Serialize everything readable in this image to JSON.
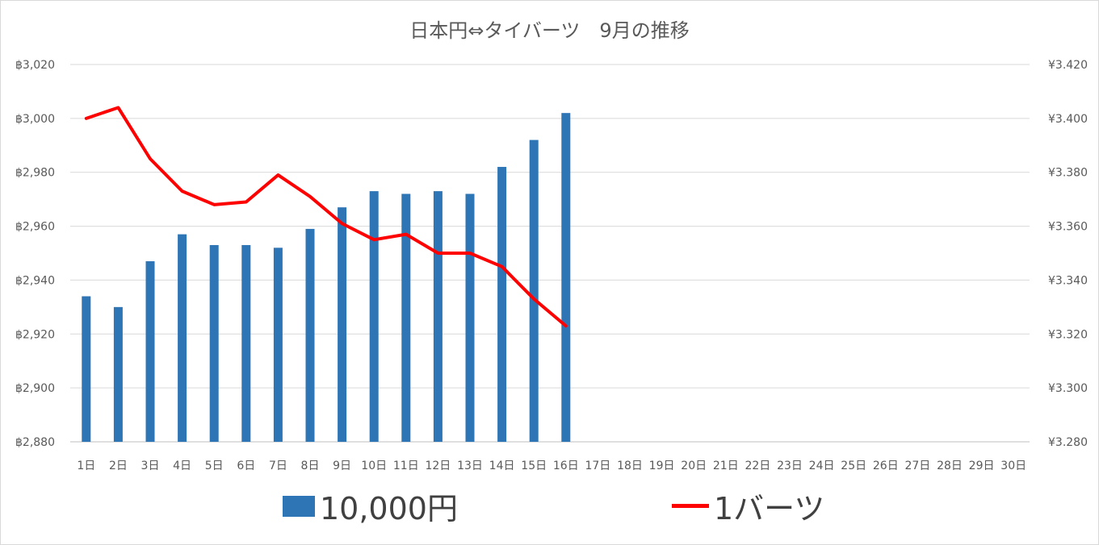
{
  "chart_data": {
    "type": "bar+line",
    "title": "日本円⇔タイバーツ　9月の推移",
    "categories": [
      "1日",
      "2日",
      "3日",
      "4日",
      "5日",
      "6日",
      "7日",
      "8日",
      "9日",
      "10日",
      "11日",
      "12日",
      "13日",
      "14日",
      "15日",
      "16日",
      "17日",
      "18日",
      "19日",
      "20日",
      "21日",
      "22日",
      "23日",
      "24日",
      "25日",
      "26日",
      "27日",
      "28日",
      "29日",
      "30日"
    ],
    "series": [
      {
        "name": "10,000円",
        "kind": "bar",
        "axis": "left",
        "color": "#2e75b6",
        "values": [
          2934,
          2930,
          2947,
          2957,
          2953,
          2953,
          2952,
          2959,
          2967,
          2973,
          2972,
          2973,
          2972,
          2982,
          2992,
          3002,
          null,
          null,
          null,
          null,
          null,
          null,
          null,
          null,
          null,
          null,
          null,
          null,
          null,
          null
        ]
      },
      {
        "name": "1バーツ",
        "kind": "line",
        "axis": "right",
        "color": "#ff0000",
        "values": [
          3.4,
          3.404,
          3.385,
          3.373,
          3.368,
          3.369,
          3.379,
          3.371,
          3.361,
          3.355,
          3.357,
          3.35,
          3.35,
          3.345,
          3.333,
          3.323,
          null,
          null,
          null,
          null,
          null,
          null,
          null,
          null,
          null,
          null,
          null,
          null,
          null,
          null
        ]
      }
    ],
    "left_axis": {
      "min": 2880,
      "max": 3020,
      "step": 20,
      "tick_labels": [
        "฿2,880",
        "฿2,900",
        "฿2,920",
        "฿2,940",
        "฿2,960",
        "฿2,980",
        "฿3,000",
        "฿3,020"
      ]
    },
    "right_axis": {
      "min": 3.28,
      "max": 3.42,
      "step": 0.02,
      "tick_labels": [
        "¥3.280",
        "¥3.300",
        "¥3.320",
        "¥3.340",
        "¥3.360",
        "¥3.380",
        "¥3.400",
        "¥3.420"
      ]
    },
    "grid": true,
    "legend_position": "bottom"
  }
}
